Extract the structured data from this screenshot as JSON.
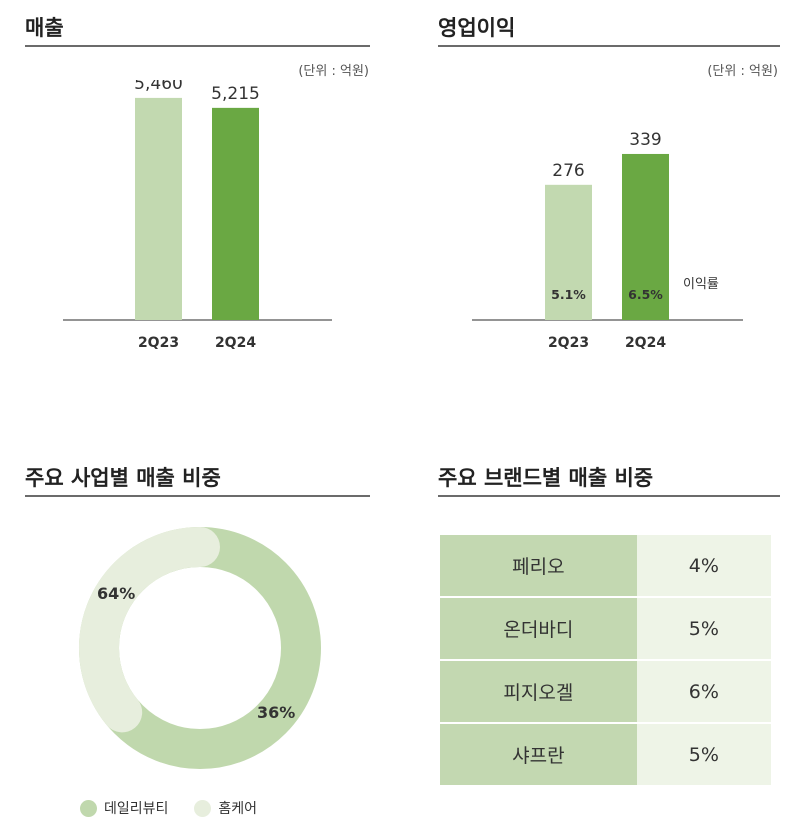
{
  "sections": {
    "revenue": {
      "title": "매출",
      "unit": "(단위 : 억원)"
    },
    "op_profit": {
      "title": "영업이익",
      "unit": "(단위 : 억원)"
    },
    "business_mix": {
      "title": "주요 사업별 매출 비중"
    },
    "brand_mix": {
      "title": "주요 브랜드별 매출 비중"
    }
  },
  "colors": {
    "prev": "#c2d9b0",
    "curr": "#6aa843",
    "donut_main": "#c0d8ad",
    "donut_minor": "#e7eedd",
    "table_name": "#c3d8b1",
    "table_value": "#eef4e7"
  },
  "chart_data": [
    {
      "type": "bar",
      "id": "revenue",
      "title": "매출",
      "categories": [
        "2Q23",
        "2Q24"
      ],
      "values": [
        5460,
        5215
      ],
      "value_labels": [
        "5,460",
        "5,215"
      ],
      "ylim": [
        0,
        5900
      ]
    },
    {
      "type": "bar",
      "id": "op_profit",
      "title": "영업이익",
      "categories": [
        "2Q23",
        "2Q24"
      ],
      "values": [
        276,
        339
      ],
      "value_labels": [
        "276",
        "339"
      ],
      "margin_labels": [
        "5.1%",
        "6.5%"
      ],
      "margin_legend": "이익률",
      "ylim": [
        0,
        490
      ]
    },
    {
      "type": "pie",
      "id": "business_mix",
      "title": "주요 사업별 매출 비중",
      "labels": [
        "데일리뷰티",
        "홈케어"
      ],
      "values": [
        64,
        36
      ],
      "value_labels": [
        "64%",
        "36%"
      ]
    },
    {
      "type": "table",
      "id": "brand_mix",
      "title": "주요 브랜드별 매출 비중",
      "rows": [
        {
          "brand": "페리오",
          "share": "4%"
        },
        {
          "brand": "온더바디",
          "share": "5%"
        },
        {
          "brand": "피지오겔",
          "share": "6%"
        },
        {
          "brand": "샤프란",
          "share": "5%"
        }
      ]
    }
  ]
}
